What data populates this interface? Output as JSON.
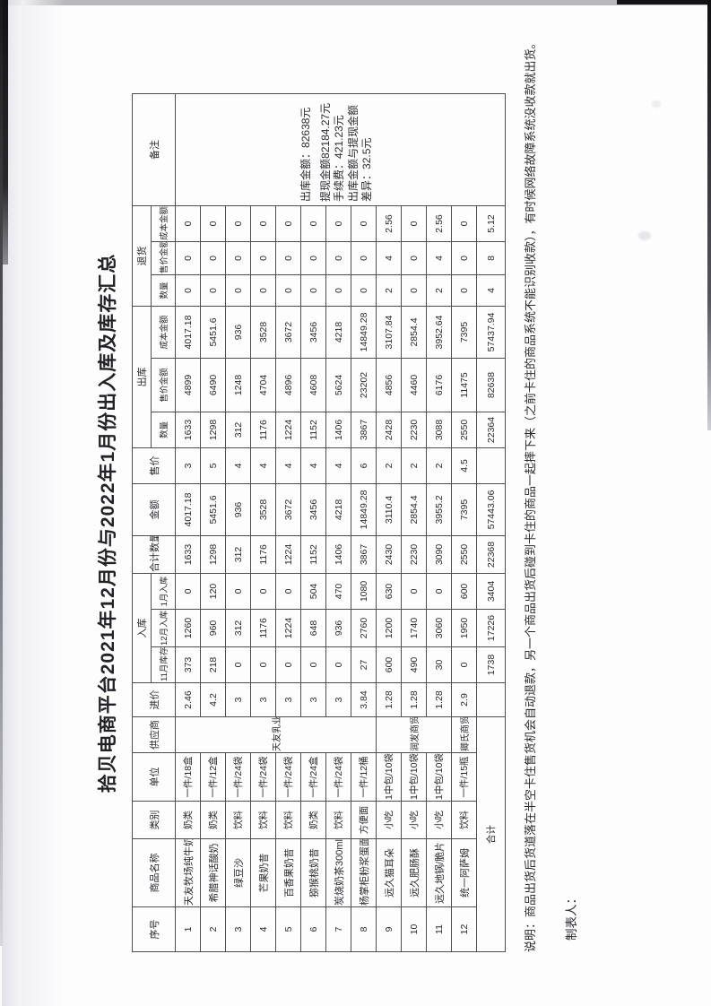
{
  "page": {
    "title": "拾贝电商平台2021年12月份与2022年1月份出入库及库存汇总",
    "note_line": "说明：商品出货后货道落在半空卡住售货机会自动退款，另一个商品出货后碰到卡住的商品一起摔下来（之前卡住的商品系统不能识别收款），有时候网络故障系统没收款就出货。",
    "preparer_label": "制表人："
  },
  "table": {
    "headers": {
      "seq": "序号",
      "name": "商品名称",
      "category": "类别",
      "unit": "单位",
      "supplier": "供应商",
      "price": "进价",
      "inbound_group": "入库",
      "nov_stock": "11月库存",
      "dec_in": "12月入库",
      "jan_in": "1月入库",
      "total_qty": "合计数量",
      "amount": "金额",
      "sale_price": "售价",
      "outbound_group": "出库",
      "returns_group": "退货",
      "qty": "数量",
      "sale_amount": "售价金额",
      "cost_amount": "成本金额",
      "remark": "备注"
    },
    "suppliers": [
      {
        "name": "天友乳业",
        "rows": 8
      },
      {
        "name": "润发商贸",
        "rows": 3
      },
      {
        "name": "卿氏商贸",
        "rows": 1
      }
    ],
    "rows": [
      [
        "1",
        "天友牧场纯牛奶",
        "奶类",
        "一件/18盒",
        "2.46",
        "373",
        "1260",
        "0",
        "1633",
        "4017.18",
        "3",
        "1633",
        "4899",
        "4017.18",
        "0",
        "0",
        "0"
      ],
      [
        "2",
        "希腊神话酸奶",
        "奶类",
        "一件/12盒",
        "4.2",
        "218",
        "960",
        "120",
        "1298",
        "5451.6",
        "5",
        "1298",
        "6490",
        "5451.6",
        "0",
        "0",
        "0"
      ],
      [
        "3",
        "绿豆沙",
        "饮料",
        "一件/24袋",
        "3",
        "0",
        "312",
        "0",
        "312",
        "936",
        "4",
        "312",
        "1248",
        "936",
        "0",
        "0",
        "0"
      ],
      [
        "4",
        "芒果奶昔",
        "饮料",
        "一件/24袋",
        "3",
        "0",
        "1176",
        "0",
        "1176",
        "3528",
        "4",
        "1176",
        "4704",
        "3528",
        "0",
        "0",
        "0"
      ],
      [
        "5",
        "百香果奶昔",
        "饮料",
        "一件/24袋",
        "3",
        "0",
        "1224",
        "0",
        "1224",
        "3672",
        "4",
        "1224",
        "4896",
        "3672",
        "0",
        "0",
        "0"
      ],
      [
        "6",
        "猕猴桃奶昔",
        "奶类",
        "一件/24盒",
        "3",
        "0",
        "648",
        "504",
        "1152",
        "3456",
        "4",
        "1152",
        "4608",
        "3456",
        "0",
        "0",
        "0"
      ],
      [
        "7",
        "炭烧奶茶300ml",
        "饮料",
        "一件/24袋",
        "3",
        "0",
        "936",
        "470",
        "1406",
        "4218",
        "4",
        "1406",
        "5624",
        "4218",
        "0",
        "0",
        "0"
      ],
      [
        "8",
        "杨掌柜粉浆蛋面",
        "方便面",
        "一件/12桶",
        "3.84",
        "27",
        "2760",
        "1080",
        "3867",
        "14849.28",
        "6",
        "3867",
        "23202",
        "14849.28",
        "0",
        "0",
        "0"
      ],
      [
        "9",
        "远久猫耳朵",
        "小吃",
        "1中包/10袋",
        "1.28",
        "600",
        "1200",
        "630",
        "2430",
        "3110.4",
        "2",
        "2428",
        "4856",
        "3107.84",
        "2",
        "4",
        "2.56"
      ],
      [
        "10",
        "远久肥肠酥",
        "小吃",
        "1中包/10袋",
        "1.28",
        "490",
        "1740",
        "0",
        "2230",
        "2854.4",
        "2",
        "2230",
        "4460",
        "2854.4",
        "0",
        "0",
        "0"
      ],
      [
        "11",
        "远久地锅/脆片",
        "小吃",
        "1中包/10袋",
        "1.28",
        "30",
        "3060",
        "0",
        "3090",
        "3955.2",
        "2",
        "3088",
        "6176",
        "3952.64",
        "2",
        "4",
        "2.56"
      ],
      [
        "12",
        "统一阿萨姆",
        "饮料",
        "一件/15瓶",
        "2.9",
        "0",
        "1950",
        "600",
        "2550",
        "7395",
        "4.5",
        "2550",
        "11475",
        "7395",
        "0",
        "0",
        "0"
      ]
    ],
    "total_label": "合计",
    "totals": [
      "1738",
      "17226",
      "3404",
      "22368",
      "57443.06",
      "",
      "22364",
      "82638",
      "57437.94",
      "4",
      "8",
      "5.12"
    ],
    "remark": {
      "line1": "出库金额：82638元",
      "line2": "提现金额82184.27元",
      "line3": "手续费：421.23元",
      "line4": "出库金额与提现金额差异：32.5元"
    }
  }
}
